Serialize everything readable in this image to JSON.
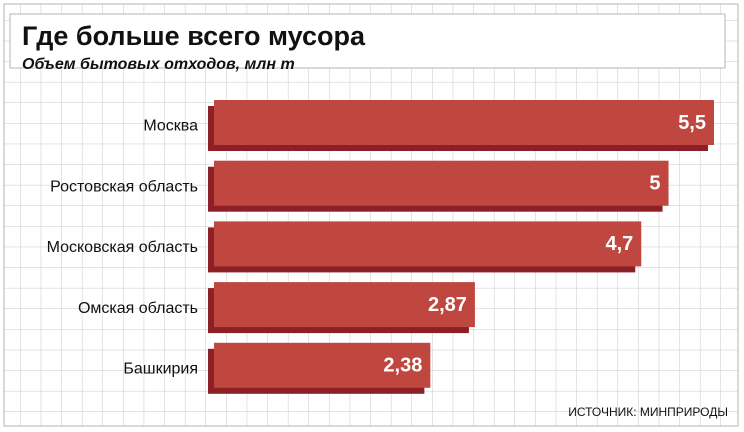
{
  "chart_data": {
    "type": "bar",
    "orientation": "horizontal",
    "title": "Где больше всего мусора",
    "subtitle": "Объем бытовых отходов, млн т",
    "source": "ИСТОЧНИК: МИНПРИРОДЫ",
    "categories": [
      "Москва",
      "Ростовская область",
      "Московская область",
      "Омская область",
      "Башкирия"
    ],
    "values": [
      5.5,
      5,
      4.7,
      2.87,
      2.38
    ],
    "value_labels": [
      "5,5",
      "5",
      "4,7",
      "2,87",
      "2,38"
    ],
    "color": "#c0473f"
  }
}
